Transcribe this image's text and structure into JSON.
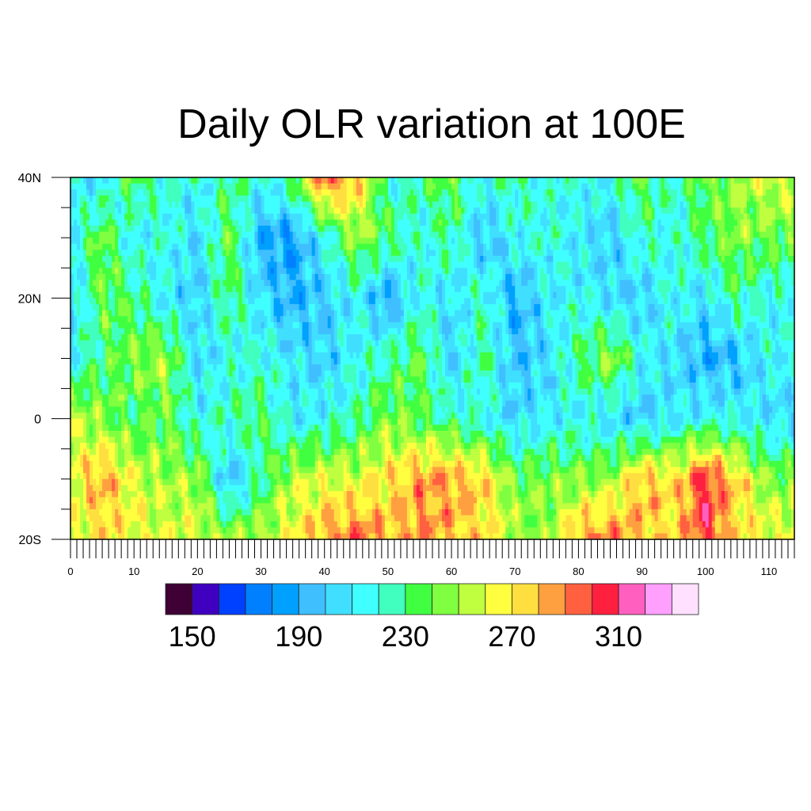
{
  "chart_data": {
    "type": "heatmap",
    "title": "Daily OLR variation at 100E",
    "xlabel": "",
    "ylabel": "",
    "xlim": [
      0,
      114
    ],
    "ylim": [
      -20,
      40
    ],
    "x_ticks": [
      0,
      10,
      20,
      30,
      40,
      50,
      60,
      70,
      80,
      90,
      100,
      110
    ],
    "x_tick_labels": [
      "0",
      "10",
      "20",
      "30",
      "40",
      "50",
      "60",
      "70",
      "80",
      "90",
      "100",
      "110"
    ],
    "y_ticks": [
      40,
      20,
      0,
      -20
    ],
    "y_tick_labels": [
      "40N",
      "20N",
      "0",
      "20S"
    ],
    "grid": false,
    "colorbar": {
      "placement": "bottom",
      "levels": [
        150,
        160,
        170,
        180,
        190,
        200,
        210,
        220,
        230,
        240,
        250,
        260,
        270,
        280,
        290,
        300,
        310,
        320,
        330
      ],
      "labels": [
        "150",
        "190",
        "230",
        "270",
        "310"
      ],
      "label_values": [
        150,
        190,
        230,
        270,
        310
      ],
      "colors": [
        "#3f0035",
        "#4000c0",
        "#0040ff",
        "#0080ff",
        "#00a0ff",
        "#40bfff",
        "#40dfff",
        "#40ffff",
        "#40ffbf",
        "#40ff40",
        "#80ff40",
        "#bfff40",
        "#ffff40",
        "#ffdf40",
        "#ffa040",
        "#ff6040",
        "#ff2040",
        "#ff60bf",
        "#ffa0ff",
        "#ffe0ff"
      ]
    },
    "grid_x_days": [
      0,
      5,
      10,
      15,
      20,
      25,
      30,
      35,
      40,
      45,
      50,
      55,
      60,
      65,
      70,
      75,
      80,
      85,
      90,
      95,
      100,
      105,
      110
    ],
    "grid_lats": [
      40,
      30,
      20,
      10,
      0,
      -10,
      -20
    ],
    "values": [
      [
        215,
        205,
        240,
        220,
        215,
        230,
        215,
        235,
        300,
        280,
        215,
        230,
        240,
        215,
        230,
        215,
        220,
        215,
        240,
        220,
        240,
        250,
        260
      ],
      [
        210,
        245,
        210,
        220,
        205,
        240,
        190,
        185,
        215,
        250,
        235,
        215,
        230,
        195,
        215,
        220,
        210,
        200,
        225,
        215,
        235,
        245,
        240
      ],
      [
        200,
        240,
        230,
        210,
        200,
        235,
        205,
        190,
        200,
        215,
        185,
        220,
        205,
        225,
        190,
        210,
        215,
        205,
        200,
        220,
        205,
        230,
        215
      ],
      [
        215,
        230,
        245,
        250,
        205,
        215,
        220,
        210,
        200,
        215,
        225,
        240,
        200,
        230,
        195,
        205,
        230,
        250,
        215,
        205,
        190,
        195,
        215
      ],
      [
        255,
        245,
        230,
        240,
        215,
        225,
        235,
        210,
        215,
        225,
        245,
        235,
        225,
        215,
        205,
        210,
        215,
        205,
        200,
        210,
        215,
        215,
        205
      ],
      [
        260,
        285,
        260,
        250,
        250,
        195,
        225,
        255,
        260,
        260,
        270,
        285,
        285,
        275,
        240,
        245,
        245,
        250,
        280,
        270,
        305,
        275,
        245
      ],
      [
        260,
        270,
        265,
        260,
        260,
        250,
        255,
        265,
        285,
        295,
        280,
        285,
        280,
        270,
        255,
        245,
        285,
        290,
        280,
        270,
        305,
        270,
        265
      ]
    ]
  }
}
